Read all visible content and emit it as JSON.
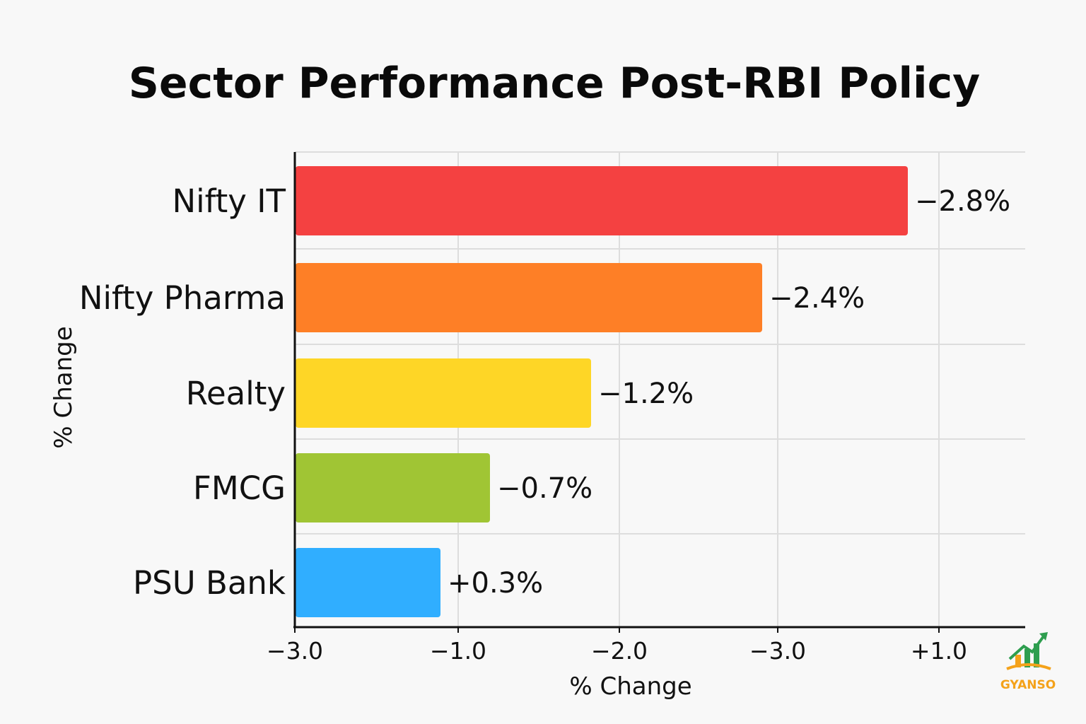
{
  "chart_data": {
    "type": "bar",
    "orientation": "horizontal",
    "title": "Sector Performance Post-RBI Policy",
    "xlabel": "% Change",
    "ylabel": "% Change",
    "categories": [
      "Nifty IT",
      "Nifty Pharma",
      "Realty",
      "FMCG",
      "PSU Bank"
    ],
    "values": [
      -2.8,
      -2.4,
      -1.2,
      -0.7,
      0.3
    ],
    "value_labels": [
      "−2.8%",
      "−2.4%",
      "−1.2%",
      "−0.7%",
      "+0.3%"
    ],
    "bar_colors": [
      "#f44141",
      "#fe7f26",
      "#fed626",
      "#a0c534",
      "#30aeff"
    ],
    "x_tick_labels": [
      "−3.0",
      "−1.0",
      "−2.0",
      "−3.0",
      "+1.0"
    ],
    "grid": true
  },
  "logo": {
    "text": "GYANSO"
  },
  "colors": {
    "background": "#f8f8f8",
    "grid": "#dddddd",
    "axis": "#111111"
  }
}
